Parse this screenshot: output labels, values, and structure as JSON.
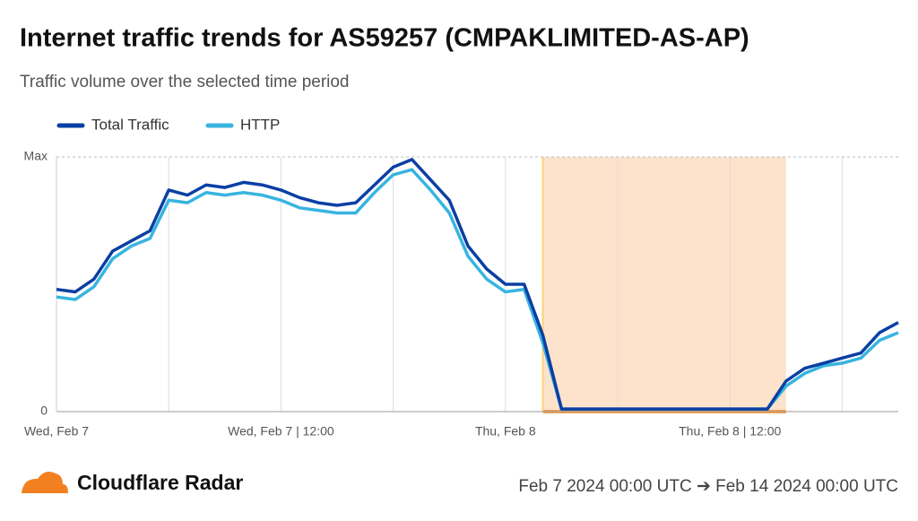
{
  "chart_data": {
    "type": "line",
    "title": "Internet traffic trends for AS59257 (CMPAKLIMITED-AS-AP)",
    "subtitle": "Traffic volume over the selected time period",
    "categories": [
      "Wed, Feb 7",
      null,
      null,
      null,
      null,
      null,
      null,
      null,
      null,
      null,
      null,
      null,
      "Wed, Feb 7 | 12:00",
      null,
      null,
      null,
      null,
      null,
      null,
      null,
      null,
      null,
      null,
      null,
      "Thu, Feb 8",
      null,
      null,
      null,
      null,
      null,
      null,
      null,
      null,
      null,
      null,
      null,
      "Thu, Feb 8 | 12:00",
      null,
      null,
      null,
      null,
      null,
      null,
      null,
      null,
      null
    ],
    "series": [
      {
        "name": "Total Traffic",
        "color": "#0a3fa3",
        "values": [
          0.48,
          0.47,
          0.52,
          0.63,
          0.67,
          0.71,
          0.87,
          0.85,
          0.89,
          0.88,
          0.9,
          0.89,
          0.87,
          0.84,
          0.82,
          0.81,
          0.82,
          0.89,
          0.96,
          0.99,
          0.91,
          0.83,
          0.65,
          0.56,
          0.5,
          0.5,
          0.3,
          0.01,
          0.01,
          0.01,
          0.01,
          0.01,
          0.01,
          0.01,
          0.01,
          0.01,
          0.01,
          0.01,
          0.01,
          0.12,
          0.17,
          0.19,
          0.21,
          0.23,
          0.31,
          0.35
        ]
      },
      {
        "name": "HTTP",
        "color": "#37b4e0",
        "values": [
          0.45,
          0.44,
          0.49,
          0.6,
          0.65,
          0.68,
          0.83,
          0.82,
          0.86,
          0.85,
          0.86,
          0.85,
          0.83,
          0.8,
          0.79,
          0.78,
          0.78,
          0.86,
          0.93,
          0.95,
          0.87,
          0.78,
          0.61,
          0.52,
          0.47,
          0.48,
          0.27,
          0.01,
          0.01,
          0.01,
          0.01,
          0.01,
          0.01,
          0.01,
          0.01,
          0.01,
          0.01,
          0.01,
          0.01,
          0.1,
          0.15,
          0.18,
          0.19,
          0.21,
          0.28,
          0.31
        ]
      }
    ],
    "ylim": [
      0,
      1
    ],
    "yticks": [
      0,
      {
        "value": 1,
        "label": "Max"
      }
    ],
    "shaded_range": [
      26,
      39
    ],
    "shaded_color": "#fde2cc",
    "brand": "Cloudflare Radar",
    "date_range": "Feb 7 2024 00:00 UTC ➔ Feb 14 2024 00:00 UTC"
  }
}
